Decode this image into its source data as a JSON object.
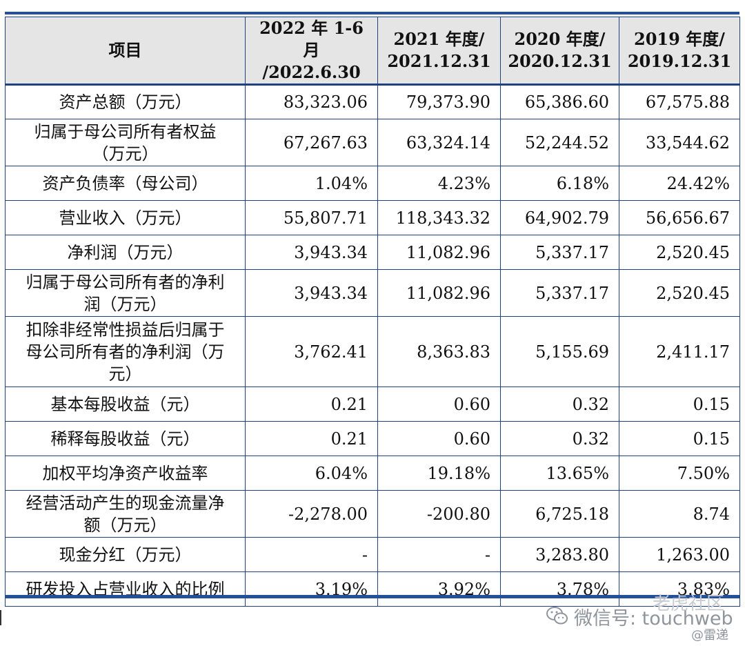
{
  "table": {
    "headers": [
      "项目",
      "2022 年 1-6 月\n/2022.6.30",
      "2021 年度/\n2021.12.31",
      "2020 年度/\n2020.12.31",
      "2019 年度/\n2019.12.31"
    ],
    "rows": [
      {
        "label": "资产总额（万元）",
        "values": [
          "83,323.06",
          "79,373.90",
          "65,386.60",
          "67,575.88"
        ]
      },
      {
        "label": "归属于母公司所有者权益\n（万元）",
        "values": [
          "67,267.63",
          "63,324.14",
          "52,244.52",
          "33,544.62"
        ]
      },
      {
        "label": "资产负债率（母公司）",
        "values": [
          "1.04%",
          "4.23%",
          "6.18%",
          "24.42%"
        ]
      },
      {
        "label": "营业收入（万元）",
        "values": [
          "55,807.71",
          "118,343.32",
          "64,902.79",
          "56,656.67"
        ]
      },
      {
        "label": "净利润（万元）",
        "values": [
          "3,943.34",
          "11,082.96",
          "5,337.17",
          "2,520.45"
        ]
      },
      {
        "label": "归属于母公司所有者的净利\n润（万元）",
        "values": [
          "3,943.34",
          "11,082.96",
          "5,337.17",
          "2,520.45"
        ]
      },
      {
        "label": "扣除非经常性损益后归属于\n母公司所有者的净利润（万\n元）",
        "values": [
          "3,762.41",
          "8,363.83",
          "5,155.69",
          "2,411.17"
        ]
      },
      {
        "label": "基本每股收益（元）",
        "values": [
          "0.21",
          "0.60",
          "0.32",
          "0.15"
        ]
      },
      {
        "label": "稀释每股收益（元）",
        "values": [
          "0.21",
          "0.60",
          "0.32",
          "0.15"
        ]
      },
      {
        "label": "加权平均净资产收益率",
        "values": [
          "6.04%",
          "19.18%",
          "13.65%",
          "7.50%"
        ]
      },
      {
        "label": "经营活动产生的现金流量净\n额（万元）",
        "values": [
          "-2,278.00",
          "-200.80",
          "6,725.18",
          "8.74"
        ]
      },
      {
        "label": "现金分红（万元）",
        "values": [
          "-",
          "-",
          "3,283.80",
          "1,263.00"
        ]
      },
      {
        "label": "研发投入占营业收入的比例",
        "values": [
          "3.19%",
          "3.92%",
          "3.78%",
          "3.83%"
        ]
      }
    ]
  },
  "watermark": {
    "title": "老虎社区",
    "main": "微信号: touchweb",
    "sub": "@雷递",
    "icon": "wechat-icon"
  }
}
